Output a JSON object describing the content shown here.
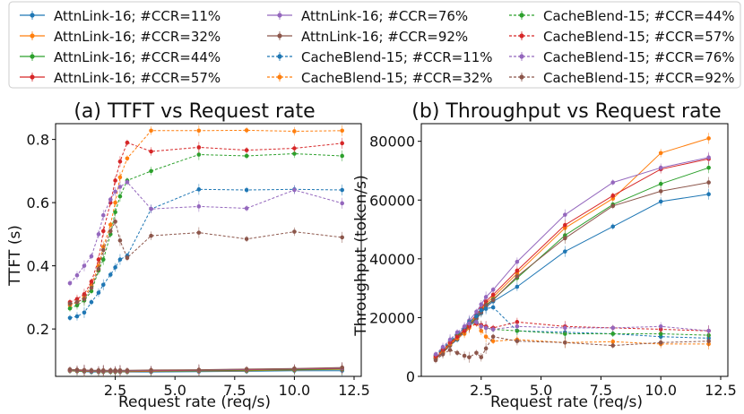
{
  "legend": {
    "entries": [
      {
        "label": "AttnLink-16; #CCR=11%",
        "color": "#1f77b4",
        "dash": false
      },
      {
        "label": "AttnLink-16; #CCR=32%",
        "color": "#ff7f0e",
        "dash": false
      },
      {
        "label": "AttnLink-16; #CCR=44%",
        "color": "#2ca02c",
        "dash": false
      },
      {
        "label": "AttnLink-16; #CCR=57%",
        "color": "#d62728",
        "dash": false
      },
      {
        "label": "AttnLink-16; #CCR=76%",
        "color": "#9467bd",
        "dash": false
      },
      {
        "label": "AttnLink-16; #CCR=92%",
        "color": "#8c564b",
        "dash": false
      },
      {
        "label": "CacheBlend-15; #CCR=11%",
        "color": "#1f77b4",
        "dash": true
      },
      {
        "label": "CacheBlend-15; #CCR=32%",
        "color": "#ff7f0e",
        "dash": true
      },
      {
        "label": "CacheBlend-15; #CCR=44%",
        "color": "#2ca02c",
        "dash": true
      },
      {
        "label": "CacheBlend-15; #CCR=57%",
        "color": "#d62728",
        "dash": true
      },
      {
        "label": "CacheBlend-15; #CCR=76%",
        "color": "#9467bd",
        "dash": true
      },
      {
        "label": "CacheBlend-15; #CCR=92%",
        "color": "#8c564b",
        "dash": true
      }
    ]
  },
  "chart_data": [
    {
      "type": "line",
      "title": "(a) TTFT vs Request rate",
      "xlabel": "Request rate (req/s)",
      "ylabel": "TTFT (s)",
      "xlim": [
        0.0,
        12.8
      ],
      "ylim": [
        0.05,
        0.85
      ],
      "xticks": [
        2.5,
        5.0,
        7.5,
        10.0,
        12.5
      ],
      "xtick_labels": [
        "2.5",
        "5.0",
        "7.5",
        "10.0",
        "12.5"
      ],
      "yticks": [
        0.2,
        0.4,
        0.6,
        0.8
      ],
      "ytick_labels": [
        "0.2",
        "0.4",
        "0.6",
        "0.8"
      ],
      "x": [
        0.6,
        0.9,
        1.2,
        1.5,
        1.8,
        2.0,
        2.3,
        2.5,
        2.7,
        3.0,
        4.0,
        6.0,
        8.0,
        10.0,
        12.0
      ],
      "series": [
        {
          "name": "AttnLink-16; #CCR=11%",
          "values": [
            0.067,
            0.066,
            0.065,
            0.064,
            0.064,
            0.064,
            0.064,
            0.064,
            0.064,
            0.064,
            0.064,
            0.065,
            0.066,
            0.068,
            0.068
          ]
        },
        {
          "name": "AttnLink-16; #CCR=32%",
          "values": [
            0.068,
            0.067,
            0.066,
            0.066,
            0.065,
            0.065,
            0.065,
            0.065,
            0.065,
            0.065,
            0.066,
            0.067,
            0.068,
            0.07,
            0.072
          ]
        },
        {
          "name": "AttnLink-16; #CCR=44%",
          "values": [
            0.069,
            0.068,
            0.067,
            0.066,
            0.066,
            0.066,
            0.066,
            0.066,
            0.066,
            0.066,
            0.067,
            0.068,
            0.069,
            0.071,
            0.073
          ]
        },
        {
          "name": "AttnLink-16; #CCR=57%",
          "values": [
            0.07,
            0.069,
            0.068,
            0.067,
            0.067,
            0.067,
            0.067,
            0.067,
            0.067,
            0.067,
            0.068,
            0.069,
            0.071,
            0.073,
            0.075
          ]
        },
        {
          "name": "AttnLink-16; #CCR=76%",
          "values": [
            0.071,
            0.07,
            0.069,
            0.068,
            0.068,
            0.068,
            0.068,
            0.068,
            0.068,
            0.068,
            0.069,
            0.07,
            0.072,
            0.074,
            0.076
          ]
        },
        {
          "name": "AttnLink-16; #CCR=92%",
          "values": [
            0.072,
            0.071,
            0.07,
            0.069,
            0.069,
            0.069,
            0.069,
            0.069,
            0.069,
            0.069,
            0.07,
            0.071,
            0.073,
            0.075,
            0.078
          ]
        },
        {
          "name": "CacheBlend-15; #CCR=11%",
          "values": [
            0.235,
            0.24,
            0.252,
            0.285,
            0.315,
            0.34,
            0.372,
            0.395,
            0.42,
            0.432,
            0.58,
            0.642,
            0.64,
            0.642,
            0.64
          ]
        },
        {
          "name": "CacheBlend-15; #CCR=32%",
          "values": [
            0.275,
            0.285,
            0.3,
            0.34,
            0.4,
            0.46,
            0.53,
            0.6,
            0.68,
            0.74,
            0.828,
            0.828,
            0.829,
            0.826,
            0.828
          ]
        },
        {
          "name": "CacheBlend-15; #CCR=44%",
          "values": [
            0.265,
            0.275,
            0.29,
            0.32,
            0.385,
            0.42,
            0.5,
            0.57,
            0.62,
            0.67,
            0.7,
            0.752,
            0.748,
            0.755,
            0.748
          ]
        },
        {
          "name": "CacheBlend-15; #CCR=57%",
          "values": [
            0.285,
            0.295,
            0.31,
            0.35,
            0.42,
            0.51,
            0.6,
            0.67,
            0.73,
            0.79,
            0.762,
            0.775,
            0.766,
            0.772,
            0.788
          ]
        },
        {
          "name": "CacheBlend-15; #CCR=76%",
          "values": [
            0.345,
            0.37,
            0.4,
            0.43,
            0.5,
            0.56,
            0.61,
            0.635,
            0.65,
            0.665,
            0.58,
            0.588,
            0.582,
            0.64,
            0.598
          ]
        },
        {
          "name": "CacheBlend-15; #CCR=92%",
          "values": [
            0.28,
            0.285,
            0.295,
            0.33,
            0.39,
            0.45,
            0.51,
            0.54,
            0.48,
            0.425,
            0.495,
            0.505,
            0.485,
            0.508,
            0.49
          ]
        }
      ]
    },
    {
      "type": "line",
      "title": "(b) Throughput vs Request rate",
      "xlabel": "Request rate (req/s)",
      "ylabel": "Throughput (token/s)",
      "xlim": [
        0.0,
        12.8
      ],
      "ylim": [
        0,
        86000
      ],
      "xticks": [
        2.5,
        5.0,
        7.5,
        10.0,
        12.5
      ],
      "xtick_labels": [
        "2.5",
        "5.0",
        "7.5",
        "10.0",
        "12.5"
      ],
      "yticks": [
        0,
        20000,
        40000,
        60000,
        80000
      ],
      "ytick_labels": [
        "0",
        "20000",
        "40000",
        "60000",
        "80000"
      ],
      "x": [
        0.6,
        0.9,
        1.2,
        1.5,
        1.8,
        2.0,
        2.3,
        2.5,
        2.7,
        3.0,
        4.0,
        6.0,
        8.0,
        10.0,
        12.0
      ],
      "series": [
        {
          "name": "AttnLink-16; #CCR=11%",
          "values": [
            6000,
            8000,
            10500,
            12500,
            15000,
            17000,
            19500,
            21500,
            23500,
            25500,
            30500,
            42500,
            51000,
            59500,
            62000
          ]
        },
        {
          "name": "AttnLink-16; #CCR=32%",
          "values": [
            6200,
            8300,
            11000,
            13000,
            15800,
            17800,
            20500,
            22500,
            24800,
            27000,
            35000,
            50500,
            60500,
            76000,
            81000
          ]
        },
        {
          "name": "AttnLink-16; #CCR=44%",
          "values": [
            6100,
            8200,
            10800,
            12800,
            15500,
            17500,
            20000,
            22000,
            24200,
            26200,
            33500,
            48000,
            58500,
            65500,
            71000
          ]
        },
        {
          "name": "AttnLink-16; #CCR=57%",
          "values": [
            6300,
            8400,
            11200,
            13300,
            16000,
            18200,
            21000,
            23000,
            25500,
            27800,
            36000,
            51500,
            61500,
            70500,
            74000
          ]
        },
        {
          "name": "AttnLink-16; #CCR=76%",
          "values": [
            6500,
            8700,
            11600,
            13800,
            16800,
            19000,
            22000,
            24500,
            27000,
            29500,
            39000,
            55000,
            66000,
            71000,
            74500
          ]
        },
        {
          "name": "AttnLink-16; #CCR=92%",
          "values": [
            6000,
            8000,
            10500,
            12800,
            15300,
            17300,
            19800,
            21800,
            24000,
            26000,
            34000,
            47000,
            58000,
            63000,
            66000
          ]
        },
        {
          "name": "CacheBlend-15; #CCR=11%",
          "values": [
            7200,
            9500,
            12000,
            14500,
            16500,
            18500,
            20500,
            22500,
            23000,
            23500,
            15500,
            15000,
            14500,
            13500,
            13000
          ]
        },
        {
          "name": "CacheBlend-15; #CCR=32%",
          "values": [
            6500,
            8500,
            11000,
            13000,
            14500,
            16500,
            18000,
            15500,
            13500,
            12000,
            12500,
            11500,
            11800,
            11000,
            11000
          ]
        },
        {
          "name": "CacheBlend-15; #CCR=44%",
          "values": [
            7000,
            9000,
            11500,
            14000,
            15500,
            17500,
            18500,
            17500,
            16500,
            16000,
            15500,
            14500,
            14500,
            14500,
            14000
          ]
        },
        {
          "name": "CacheBlend-15; #CCR=57%",
          "values": [
            6800,
            9000,
            11500,
            13500,
            15500,
            17000,
            18000,
            17500,
            17000,
            16500,
            18500,
            17000,
            16500,
            16000,
            15500
          ]
        },
        {
          "name": "CacheBlend-15; #CCR=76%",
          "values": [
            7500,
            10000,
            12500,
            15000,
            17000,
            18000,
            18500,
            17000,
            16500,
            16000,
            17000,
            16500,
            16500,
            17000,
            15500
          ]
        },
        {
          "name": "CacheBlend-15; #CCR=92%",
          "values": [
            5500,
            7500,
            9000,
            8000,
            7000,
            6500,
            8000,
            6500,
            9500,
            13500,
            12000,
            11500,
            10500,
            11500,
            12000
          ]
        }
      ]
    }
  ]
}
